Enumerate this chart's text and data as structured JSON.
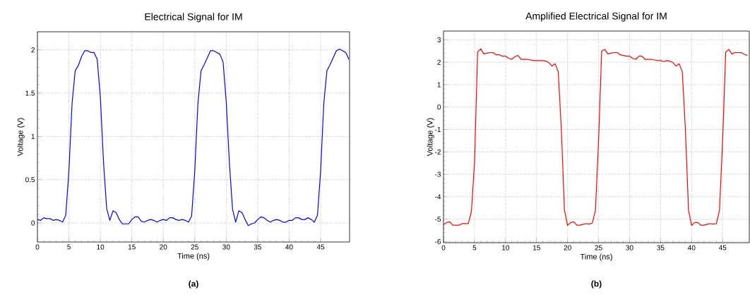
{
  "chart_data": [
    {
      "type": "line",
      "title": "Electrical Signal for IM",
      "xlabel": "Time (ns)",
      "ylabel": "Voltage (V)",
      "annotations": [
        "**(a)**"
      ],
      "x": [
        0,
        0.5,
        1,
        1.5,
        2,
        2.5,
        3,
        3.5,
        4,
        4.5,
        5,
        5.5,
        6,
        6.5,
        7,
        7.5,
        8,
        8.5,
        9,
        9.5,
        10,
        10.5,
        11,
        11.5,
        12,
        12.5,
        13,
        13.5,
        14,
        14.5,
        15,
        15.5,
        16,
        16.5,
        17,
        17.5,
        18,
        18.5,
        19,
        19.5,
        20,
        20.5,
        21,
        21.5,
        22,
        22.5,
        23,
        23.5,
        24,
        24.5,
        25,
        25.5,
        26,
        26.5,
        27,
        27.5,
        28,
        28.5,
        29,
        29.5,
        30,
        30.5,
        31,
        31.5,
        32,
        32.5,
        33,
        33.5,
        34,
        34.5,
        35,
        35.5,
        36,
        36.5,
        37,
        37.5,
        38,
        38.5,
        39,
        39.5,
        40,
        40.5,
        41,
        41.5,
        42,
        42.5,
        43,
        43.5,
        44,
        44.5,
        45,
        45.5,
        46,
        46.5,
        47,
        47.5,
        48,
        48.5,
        49,
        49.5
      ],
      "series": [
        {
          "color": "#0000ff",
          "values": [
            0.04,
            0.03,
            0.06,
            0.05,
            0.05,
            0.03,
            0.04,
            0.03,
            0.01,
            0.09,
            0.6,
            1.38,
            1.76,
            1.82,
            1.92,
            1.99,
            1.99,
            1.97,
            1.97,
            1.89,
            1.45,
            0.7,
            0.17,
            0.03,
            0.14,
            0.12,
            0.04,
            -0.01,
            -0.01,
            -0.01,
            0.04,
            0.07,
            0.07,
            0.02,
            0.01,
            0.03,
            0.04,
            0.03,
            0.01,
            0.03,
            0.04,
            0.03,
            0.06,
            0.06,
            0.04,
            0.03,
            0.04,
            0.03,
            0.01,
            0.08,
            0.6,
            1.38,
            1.76,
            1.83,
            1.91,
            1.99,
            1.99,
            1.97,
            1.95,
            1.86,
            1.4,
            0.7,
            0.16,
            0.01,
            0.14,
            0.12,
            0.04,
            -0.03,
            -0.01,
            0.0,
            0.04,
            0.07,
            0.06,
            0.03,
            0.01,
            0.03,
            0.04,
            0.03,
            0.01,
            0.01,
            0.03,
            0.03,
            0.06,
            0.06,
            0.04,
            0.04,
            0.06,
            0.04,
            0.01,
            0.09,
            0.6,
            1.38,
            1.76,
            1.83,
            1.91,
            1.99,
            2.01,
            1.99,
            1.97,
            1.89
          ]
        }
      ],
      "xlim": [
        0,
        49.6
      ],
      "ylim": [
        -0.22,
        2.21
      ],
      "xticks": [
        0,
        5,
        10,
        15,
        20,
        25,
        30,
        35,
        40,
        45
      ],
      "yticks": [
        0,
        0.5,
        1,
        1.5,
        2
      ],
      "grid": true,
      "line_style": "solid",
      "marker": "none"
    },
    {
      "type": "line",
      "title": "Amplified Electrical Signal for IM",
      "xlabel": "Time (ns)",
      "ylabel": "Voltage (V)",
      "annotations": [
        "**(b)**"
      ],
      "x": [
        0,
        0.5,
        1,
        1.5,
        2,
        2.5,
        3,
        3.5,
        4,
        4.5,
        5,
        5.5,
        6,
        6.5,
        7,
        7.5,
        8,
        8.5,
        9,
        9.5,
        10,
        10.5,
        11,
        11.5,
        12,
        12.5,
        13,
        13.5,
        14,
        14.5,
        15,
        15.5,
        16,
        16.5,
        17,
        17.5,
        18,
        18.5,
        19,
        19.5,
        20,
        20.5,
        21,
        21.5,
        22,
        22.5,
        23,
        23.5,
        24,
        24.5,
        25,
        25.5,
        26,
        26.5,
        27,
        27.5,
        28,
        28.5,
        29,
        29.5,
        30,
        30.5,
        31,
        31.5,
        32,
        32.5,
        33,
        33.5,
        34,
        34.5,
        35,
        35.5,
        36,
        36.5,
        37,
        37.5,
        38,
        38.5,
        39,
        39.5,
        40,
        40.5,
        41,
        41.5,
        42,
        42.5,
        43,
        43.5,
        44,
        44.5,
        45,
        45.5,
        46,
        46.5,
        47,
        47.5,
        48,
        48.5,
        49
      ],
      "series": [
        {
          "color": "#ff0000",
          "values": [
            -5.25,
            -5.15,
            -5.12,
            -5.27,
            -5.27,
            -5.27,
            -5.2,
            -5.2,
            -5.2,
            -4.65,
            -2.5,
            2.45,
            2.6,
            2.37,
            2.4,
            2.43,
            2.43,
            2.33,
            2.33,
            2.27,
            2.27,
            2.17,
            2.13,
            2.25,
            2.3,
            2.13,
            2.13,
            2.13,
            2.1,
            2.07,
            2.07,
            2.07,
            2.07,
            2.05,
            1.98,
            1.83,
            1.93,
            1.57,
            -1.0,
            -4.6,
            -5.28,
            -5.15,
            -5.12,
            -5.27,
            -5.27,
            -5.23,
            -5.2,
            -5.22,
            -5.17,
            -4.6,
            -1.5,
            2.5,
            2.57,
            2.37,
            2.4,
            2.43,
            2.43,
            2.33,
            2.3,
            2.27,
            2.27,
            2.17,
            2.13,
            2.27,
            2.27,
            2.13,
            2.13,
            2.13,
            2.1,
            2.07,
            2.07,
            2.03,
            2.07,
            2.05,
            1.98,
            1.83,
            1.93,
            1.57,
            -1.0,
            -4.6,
            -5.28,
            -5.15,
            -5.15,
            -5.27,
            -5.27,
            -5.23,
            -5.2,
            -5.22,
            -5.2,
            -4.6,
            -1.5,
            2.45,
            2.57,
            2.37,
            2.43,
            2.43,
            2.43,
            2.35,
            2.3
          ]
        }
      ],
      "xlim": [
        0,
        49.3
      ],
      "ylim": [
        -6.05,
        3.39
      ],
      "xticks": [
        0,
        5,
        10,
        15,
        20,
        25,
        30,
        35,
        40,
        45
      ],
      "yticks": [
        -6,
        -5,
        -4,
        -3,
        -2,
        -1,
        0,
        1,
        2,
        3
      ],
      "grid": true,
      "line_style": "solid",
      "marker": "none"
    }
  ]
}
